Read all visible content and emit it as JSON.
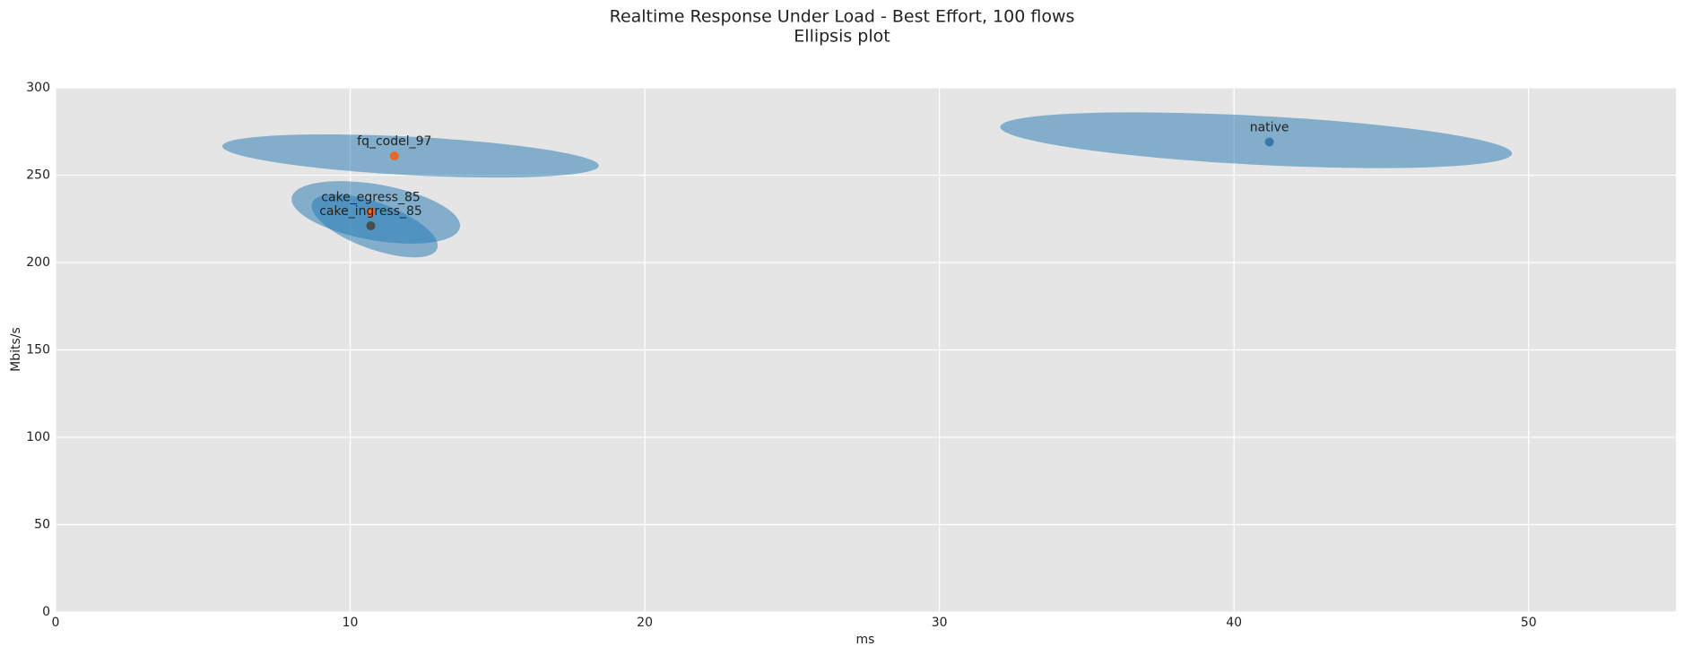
{
  "chart_data": {
    "type": "ellipse",
    "title": "Realtime Response Under Load - Best Effort, 100 flows",
    "subtitle": "Ellipsis plot",
    "x_label": "ms",
    "y_label": "Mbits/s",
    "xlim": [
      0,
      55
    ],
    "ylim": [
      0,
      300
    ],
    "xticks": [
      0,
      10,
      20,
      30,
      40,
      50
    ],
    "yticks": [
      0,
      50,
      100,
      150,
      200,
      250,
      300
    ],
    "grid": true,
    "ellipse_color": "#1f77b4",
    "series": [
      {
        "name": "fq_codel_97",
        "color": "#e8692a",
        "x": 11.5,
        "y": 261,
        "ellipse": {
          "cx": 12.05,
          "cy": 261,
          "rx": 6.4,
          "ry": 11,
          "angle": 3
        }
      },
      {
        "name": "cake_egress_85",
        "color": "#e8692a",
        "x": 10.7,
        "y": 229,
        "ellipse": {
          "cx": 10.87,
          "cy": 228.7,
          "rx": 2.9,
          "ry": 16,
          "angle": 10
        }
      },
      {
        "name": "cake_ingress_85",
        "color": "#4d4d4d",
        "x": 10.7,
        "y": 221,
        "ellipse": {
          "cx": 10.83,
          "cy": 221,
          "rx": 2.26,
          "ry": 13.3,
          "angle": 20
        }
      },
      {
        "name": "native",
        "color": "#3a77a8",
        "x": 41.2,
        "y": 269,
        "ellipse": {
          "cx": 40.75,
          "cy": 270,
          "rx": 8.7,
          "ry": 14,
          "angle": 3
        }
      }
    ]
  }
}
